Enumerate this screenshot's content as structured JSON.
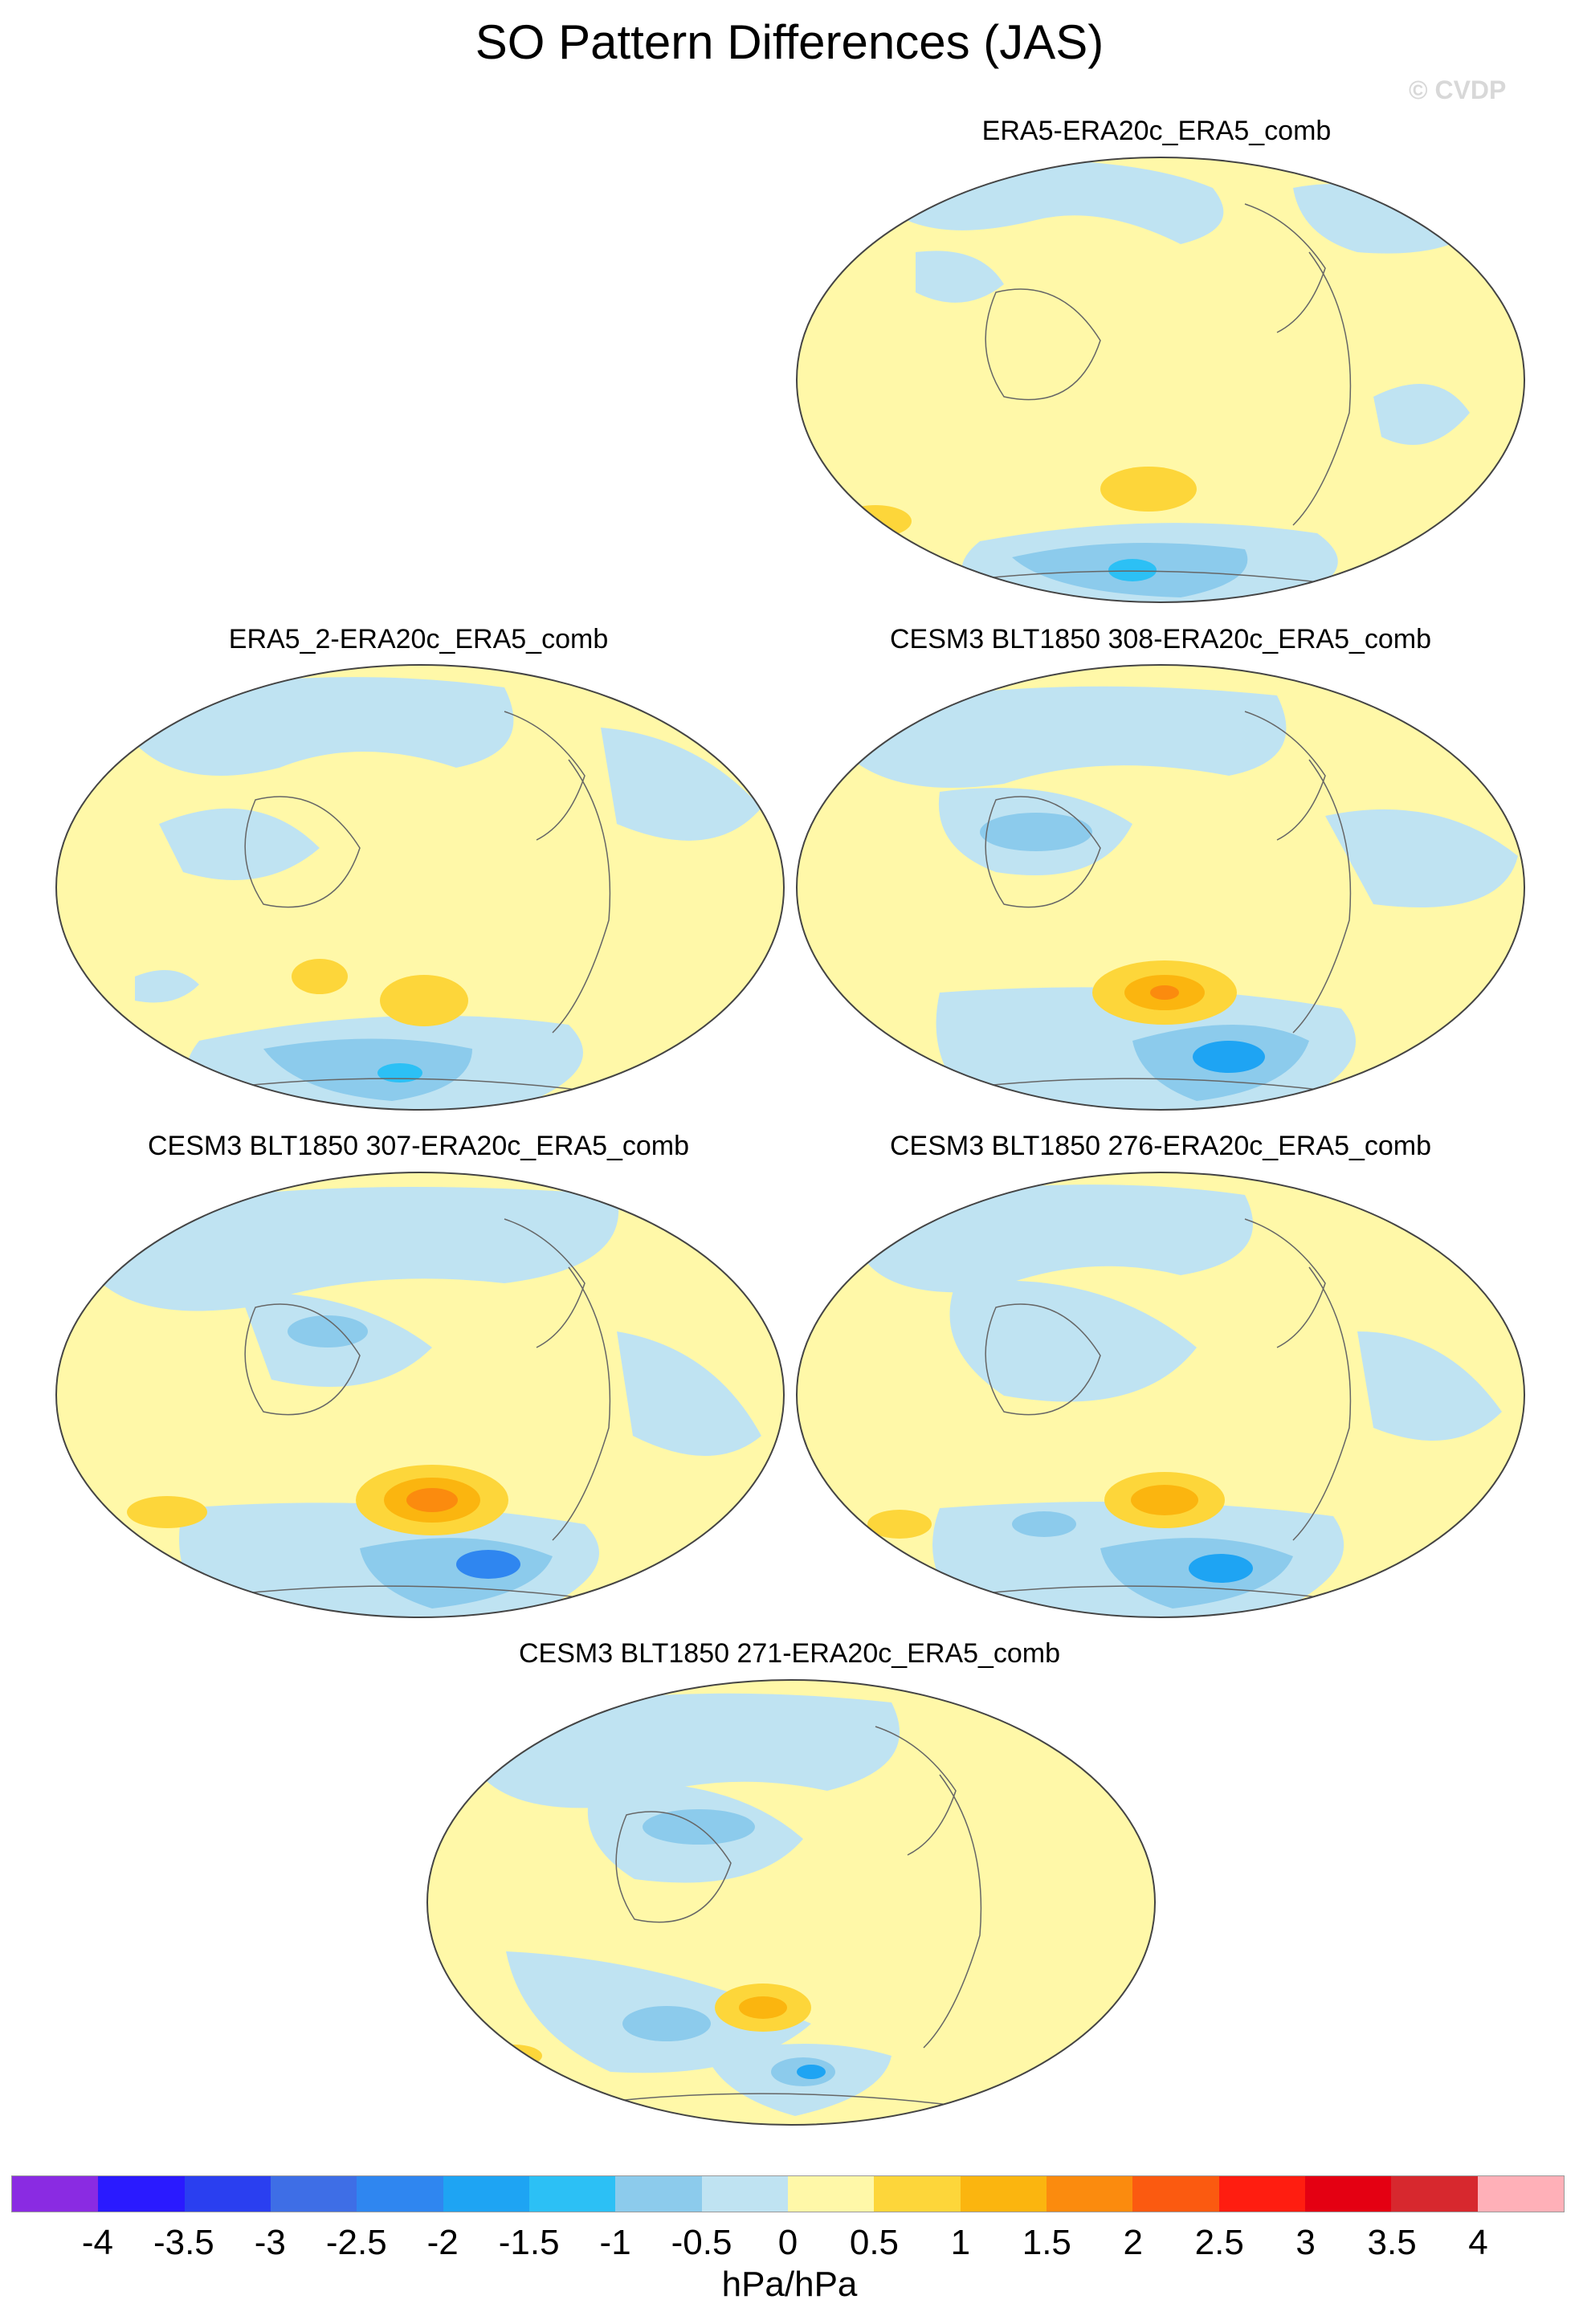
{
  "figure": {
    "title": "SO Pattern Differences (JAS)",
    "watermark": "© CVDP"
  },
  "panels": [
    {
      "title": "ERA5-ERA20c_ERA5_comb"
    },
    {
      "title": "ERA5_2-ERA20c_ERA5_comb"
    },
    {
      "title": "CESM3 BLT1850 308-ERA20c_ERA5_comb"
    },
    {
      "title": "CESM3 BLT1850 307-ERA20c_ERA5_comb"
    },
    {
      "title": "CESM3 BLT1850 276-ERA20c_ERA5_comb"
    },
    {
      "title": "CESM3 BLT1850 271-ERA20c_ERA5_comb"
    }
  ],
  "colorbar": {
    "units": "hPa/hPa",
    "labels": [
      "-4",
      "-3.5",
      "-3",
      "-2.5",
      "-2",
      "-1.5",
      "-1",
      "-0.5",
      "0",
      "0.5",
      "1",
      "1.5",
      "2",
      "2.5",
      "3",
      "3.5",
      "4"
    ],
    "colors": [
      "#8a2be2",
      "#2a1aff",
      "#2a3ff0",
      "#3e6ee6",
      "#2f86f0",
      "#1ea4f3",
      "#2cc0f5",
      "#8ccbec",
      "#bfe3f2",
      "#fff8a8",
      "#fdd63a",
      "#fbb50f",
      "#fb8b0e",
      "#fb5a10",
      "#ff1d10",
      "#e40012",
      "#d7282e",
      "#ffb0b8"
    ]
  },
  "palette": {
    "background_positive": "#fff8a8",
    "background_negative": "#bfe3f2",
    "coast": "#666666"
  }
}
